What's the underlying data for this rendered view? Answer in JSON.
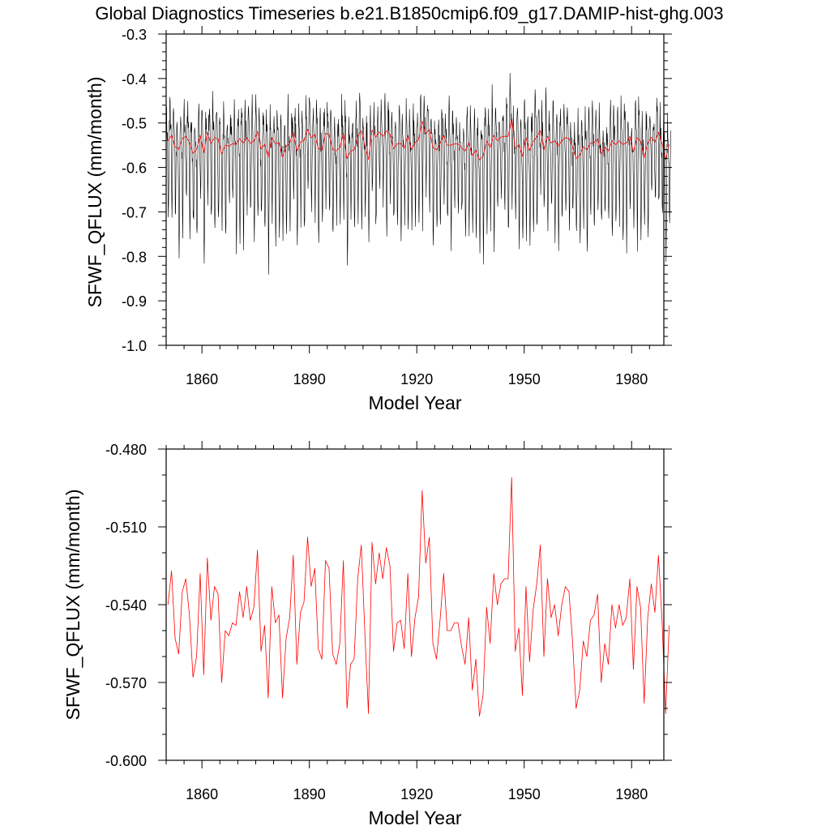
{
  "title": "Global Diagnostics Timeseries b.e21.B1850cmip6.f09_g17.DAMIP-hist-ghg.003",
  "chart_data": [
    {
      "type": "line",
      "title": "Global Diagnostics Timeseries b.e21.B1850cmip6.f09_g17.DAMIP-hist-ghg.003",
      "xlabel": "Model Year",
      "ylabel": "SFWF_QFLUX (mm/month)",
      "xlim": [
        1850,
        1989
      ],
      "ylim": [
        -1.0,
        -0.3
      ],
      "xticks": [
        1860,
        1890,
        1920,
        1950,
        1980
      ],
      "xtick_labels": [
        "1860",
        "1890",
        "1920",
        "1950",
        "1980"
      ],
      "yticks": [
        -1.0,
        -0.9,
        -0.8,
        -0.7,
        -0.6,
        -0.5,
        -0.4,
        -0.3
      ],
      "ytick_labels": [
        "-1.0",
        "-0.9",
        "-0.8",
        "-0.7",
        "-0.6",
        "-0.5",
        "-0.4",
        "-0.3"
      ],
      "grid": false,
      "series_colors": [
        "#000000",
        "#ff0000"
      ],
      "series": [
        {
          "kind": "monthly",
          "x_start": 1850.04,
          "x_step": 0.08333,
          "values": []
        },
        {
          "kind": "annual",
          "x_start": 1850.5,
          "x_step": 1,
          "values": []
        }
      ]
    },
    {
      "type": "line",
      "title": "",
      "xlabel": "Model Year",
      "ylabel": "SFWF_QFLUX (mm/month)",
      "xlim": [
        1850,
        1989
      ],
      "ylim": [
        -0.6,
        -0.48
      ],
      "xticks": [
        1860,
        1890,
        1920,
        1950,
        1980
      ],
      "xtick_labels": [
        "1860",
        "1890",
        "1920",
        "1950",
        "1980"
      ],
      "yticks": [
        -0.6,
        -0.57,
        -0.54,
        -0.51,
        -0.48
      ],
      "ytick_labels": [
        "-0.600",
        "-0.570",
        "-0.540",
        "-0.510",
        "-0.480"
      ],
      "grid": false,
      "series_colors": [
        "#ff0000"
      ],
      "series": [
        {
          "kind": "annual",
          "x_start": 1850.5,
          "x_step": 1,
          "values": [
            -0.54,
            -0.527,
            -0.553,
            -0.559,
            -0.535,
            -0.53,
            -0.544,
            -0.568,
            -0.56,
            -0.528,
            -0.567,
            -0.522,
            -0.546,
            -0.533,
            -0.536,
            -0.57,
            -0.55,
            -0.552,
            -0.547,
            -0.548,
            -0.535,
            -0.545,
            -0.533,
            -0.546,
            -0.541,
            -0.519,
            -0.558,
            -0.548,
            -0.576,
            -0.533,
            -0.547,
            -0.544,
            -0.576,
            -0.553,
            -0.545,
            -0.521,
            -0.563,
            -0.543,
            -0.539,
            -0.514,
            -0.533,
            -0.526,
            -0.557,
            -0.561,
            -0.523,
            -0.526,
            -0.559,
            -0.563,
            -0.555,
            -0.523,
            -0.58,
            -0.563,
            -0.561,
            -0.53,
            -0.517,
            -0.551,
            -0.582,
            -0.516,
            -0.532,
            -0.52,
            -0.53,
            -0.518,
            -0.525,
            -0.558,
            -0.547,
            -0.546,
            -0.557,
            -0.528,
            -0.56,
            -0.545,
            -0.537,
            -0.496,
            -0.524,
            -0.514,
            -0.555,
            -0.561,
            -0.546,
            -0.528,
            -0.55,
            -0.55,
            -0.547,
            -0.547,
            -0.556,
            -0.563,
            -0.545,
            -0.573,
            -0.561,
            -0.583,
            -0.575,
            -0.541,
            -0.555,
            -0.528,
            -0.54,
            -0.532,
            -0.53,
            -0.53,
            -0.491,
            -0.558,
            -0.549,
            -0.575,
            -0.533,
            -0.562,
            -0.542,
            -0.532,
            -0.517,
            -0.56,
            -0.53,
            -0.545,
            -0.54,
            -0.552,
            -0.54,
            -0.533,
            -0.535,
            -0.554,
            -0.58,
            -0.573,
            -0.554,
            -0.56,
            -0.546,
            -0.544,
            -0.536,
            -0.57,
            -0.555,
            -0.563,
            -0.54,
            -0.549,
            -0.54,
            -0.548,
            -0.545,
            -0.53,
            -0.565,
            -0.533,
            -0.541,
            -0.578,
            -0.545,
            -0.532,
            -0.543,
            -0.521,
            -0.546,
            -0.582,
            -0.548
          ]
        }
      ]
    }
  ]
}
